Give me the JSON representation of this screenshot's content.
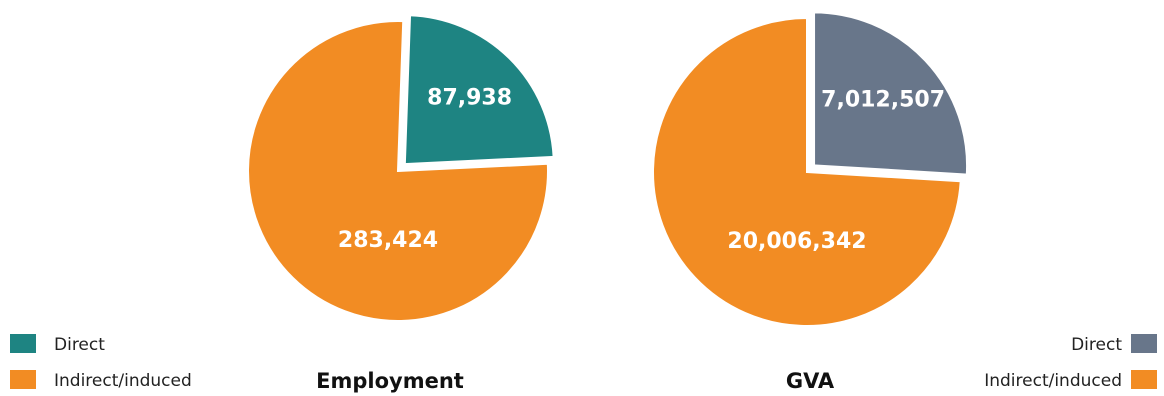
{
  "colors": {
    "indirect": "#F28C23",
    "employment_direct": "#1E8482",
    "gva_direct": "#68768A",
    "slice_border": "#ffffff"
  },
  "chart_data": [
    {
      "type": "pie",
      "title": "Employment",
      "slices": [
        {
          "name": "Direct",
          "value": 87938,
          "label": "87,938",
          "exploded": true
        },
        {
          "name": "Indirect/induced",
          "value": 283424,
          "label": "283,424",
          "exploded": false
        }
      ],
      "legend": {
        "placement": "bottom-left",
        "items": [
          "Direct",
          "Indirect/induced"
        ]
      }
    },
    {
      "type": "pie",
      "title": "GVA",
      "slices": [
        {
          "name": "Direct",
          "value": 7012507,
          "label": "7,012,507",
          "exploded": true
        },
        {
          "name": "Indirect/induced",
          "value": 20006342,
          "label": "20,006,342",
          "exploded": false
        }
      ],
      "legend": {
        "placement": "bottom-right",
        "items": [
          "Direct",
          "Indirect/induced"
        ]
      }
    }
  ]
}
